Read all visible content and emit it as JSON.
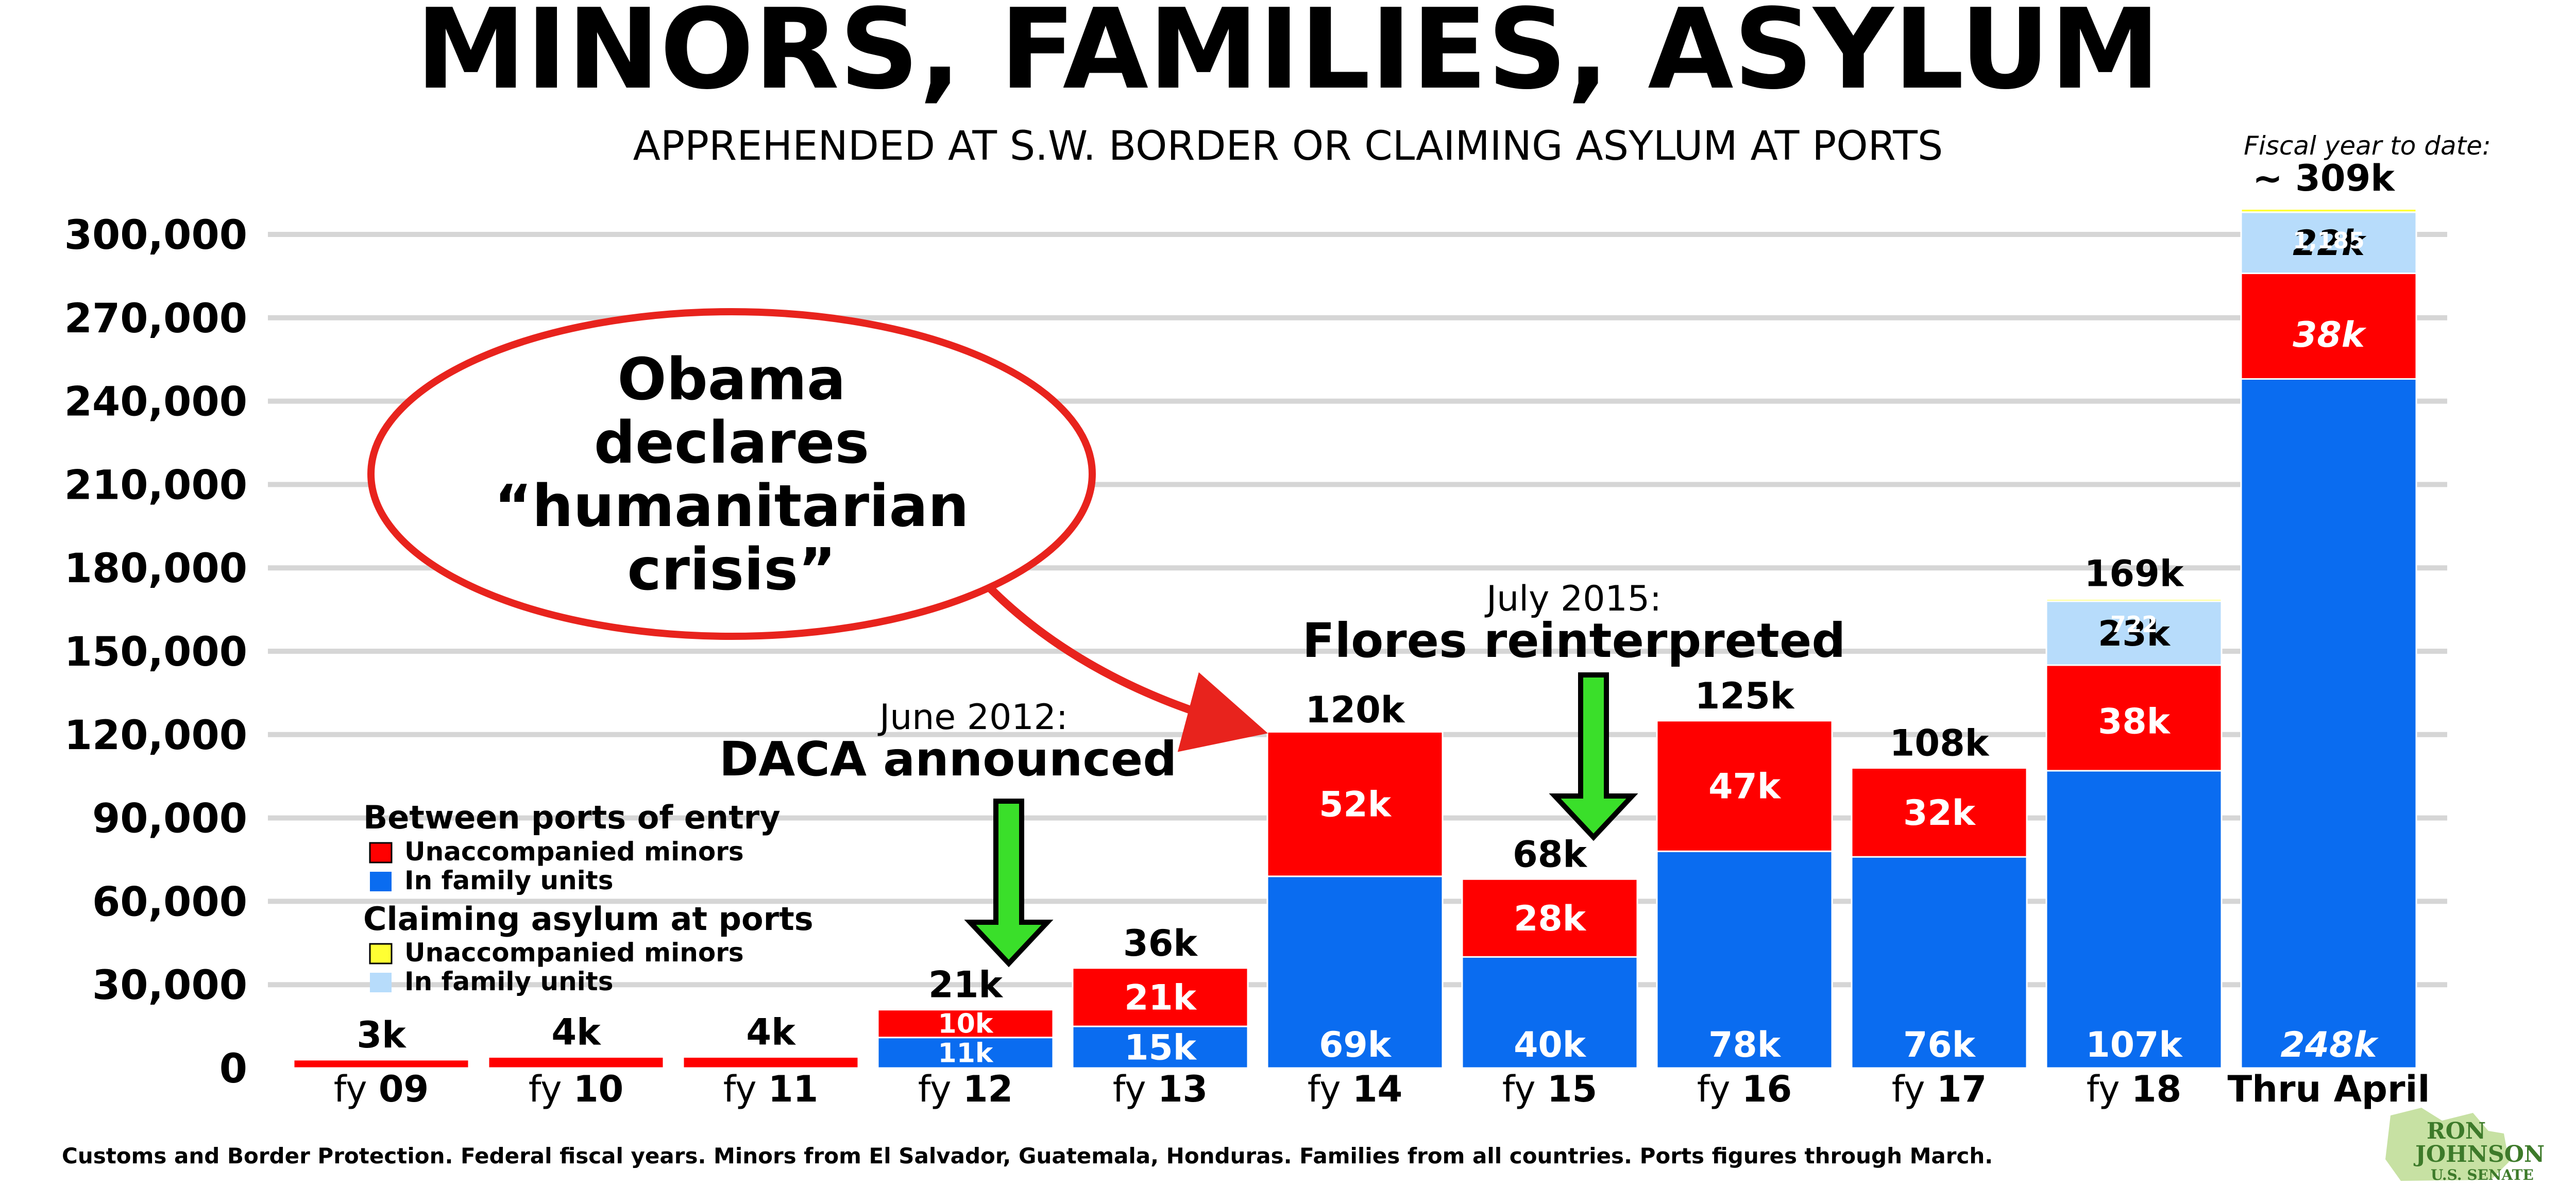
{
  "title": "MINORS, FAMILIES, ASYLUM",
  "subtitle": "APPREHENDED AT S.W. BORDER OR CLAIMING ASYLUM AT PORTS",
  "fytd_label": "Fiscal year to date:",
  "source_note": "Customs and Border Protection. Federal fiscal years. Minors from El Salvador, Guatemala, Honduras. Families from all countries. Ports figures through March.",
  "logo": {
    "line1": "RON",
    "line2": "JOHNSON",
    "line3": "U.S. SENATE"
  },
  "colors": {
    "between_minors": "#ff0000",
    "between_families": "#0a6cf0",
    "ports_minors": "#ffff33",
    "ports_families": "#b7dcfb",
    "gridline": "#d6d6d6",
    "callout": "#e8231d",
    "arrow_green": "#3adf2a"
  },
  "annotations": {
    "callout": {
      "line1": "Obama",
      "line2": "declares",
      "line3": "“humanitarian",
      "line4": "crisis”"
    },
    "daca": {
      "date": "June 2012:",
      "event": "DACA announced"
    },
    "flores": {
      "date": "July 2015:",
      "event": "Flores reinterpreted"
    }
  },
  "legend": {
    "heading_between": "Between ports of entry",
    "between_minors": "Unaccompanied minors",
    "between_families": "In family units",
    "heading_ports": "Claiming asylum at ports",
    "ports_minors": "Unaccompanied minors",
    "ports_families": "In family units"
  },
  "chart_data": {
    "type": "bar",
    "stacked": true,
    "title": "MINORS, FAMILIES, ASYLUM",
    "subtitle": "APPREHENDED AT S.W. BORDER OR CLAIMING ASYLUM AT PORTS",
    "ylim": [
      0,
      300000
    ],
    "yticks": [
      "0",
      "30,000",
      "60,000",
      "90,000",
      "120,000",
      "150,000",
      "180,000",
      "210,000",
      "240,000",
      "270,000",
      "300,000"
    ],
    "grid": true,
    "legend_position": "left",
    "categories": [
      {
        "prefix": "fy ",
        "num": "09"
      },
      {
        "prefix": "fy ",
        "num": "10"
      },
      {
        "prefix": "fy ",
        "num": "11"
      },
      {
        "prefix": "fy ",
        "num": "12"
      },
      {
        "prefix": "fy ",
        "num": "13"
      },
      {
        "prefix": "fy ",
        "num": "14"
      },
      {
        "prefix": "fy ",
        "num": "15"
      },
      {
        "prefix": "fy ",
        "num": "16"
      },
      {
        "prefix": "fy ",
        "num": "17"
      },
      {
        "prefix": "fy ",
        "num": "18"
      },
      {
        "prefix": "",
        "num": "Thru April"
      }
    ],
    "series": [
      {
        "name": "Between ports of entry — In family units",
        "key": "between_families",
        "values": [
          0,
          0,
          0,
          11000,
          15000,
          69000,
          40000,
          78000,
          76000,
          107000,
          248000
        ],
        "labels": [
          "",
          "",
          "",
          "11k",
          "15k",
          "69k",
          "40k",
          "78k",
          "76k",
          "107k",
          "248k"
        ]
      },
      {
        "name": "Between ports of entry — Unaccompanied minors",
        "key": "between_minors",
        "values": [
          3000,
          4000,
          4000,
          10000,
          21000,
          52000,
          28000,
          47000,
          32000,
          38000,
          38000
        ],
        "labels": [
          "",
          "",
          "",
          "10k",
          "21k",
          "52k",
          "28k",
          "47k",
          "32k",
          "38k",
          "38k"
        ]
      },
      {
        "name": "Claiming asylum at ports — In family units",
        "key": "ports_families",
        "values": [
          0,
          0,
          0,
          0,
          0,
          0,
          0,
          0,
          0,
          23000,
          22000
        ],
        "labels": [
          "",
          "",
          "",
          "",
          "",
          "",
          "",
          "",
          "",
          "23k",
          "22k"
        ]
      },
      {
        "name": "Claiming asylum at ports — Unaccompanied minors",
        "key": "ports_minors",
        "values": [
          0,
          0,
          0,
          0,
          0,
          0,
          0,
          0,
          0,
          722,
          1185
        ],
        "labels": [
          "",
          "",
          "",
          "",
          "",
          "",
          "",
          "",
          "",
          "722",
          "1,185"
        ]
      }
    ],
    "totals": [
      3000,
      4000,
      4000,
      21000,
      36000,
      120000,
      68000,
      125000,
      108000,
      169000,
      309000
    ],
    "total_labels": [
      "3k",
      "4k",
      "4k",
      "21k",
      "36k",
      "120k",
      "68k",
      "125k",
      "108k",
      "169k",
      "~ 309k"
    ]
  }
}
